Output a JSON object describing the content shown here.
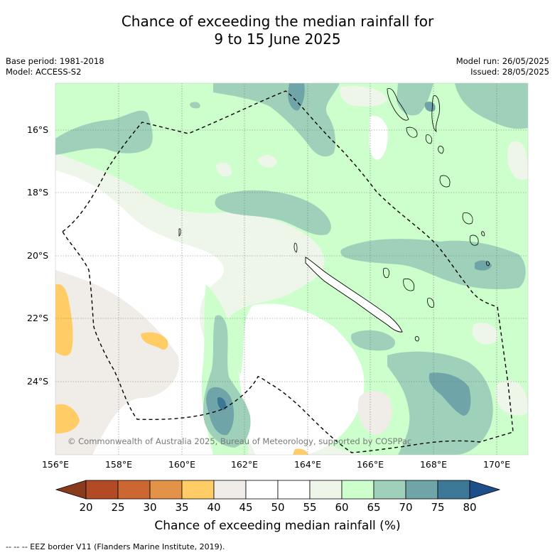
{
  "header": {
    "title_line1": "Chance of exceeding the median rainfall for",
    "title_line2": "9 to 15 June 2025",
    "base_period": "Base period: 1981-2018",
    "model": "Model: ACCESS-S2",
    "model_run": "Model run: 26/05/2025",
    "issued": "Issued: 28/05/2025"
  },
  "map": {
    "latitude_labels": [
      "16°S",
      "18°S",
      "20°S",
      "22°S",
      "24°S"
    ],
    "longitude_labels": [
      "156°E",
      "158°E",
      "160°E",
      "162°E",
      "164°E",
      "166°E",
      "168°E",
      "170°E"
    ],
    "copyright": "© Commonwealth of Australia 2025, Bureau of Meteorology, supported by COSPPac"
  },
  "colorbar": {
    "ticks": [
      "20",
      "25",
      "30",
      "35",
      "40",
      "45",
      "50",
      "55",
      "60",
      "65",
      "70",
      "75",
      "80"
    ],
    "colors": [
      "#8a3a1c",
      "#b24a25",
      "#cc6633",
      "#e39347",
      "#ffcc66",
      "#f0ece7",
      "#ffffff",
      "#ffffff",
      "#eef6ea",
      "#ccffcc",
      "#9fd0b9",
      "#6fa5a8",
      "#3d7796",
      "#1f4f8a"
    ],
    "label": "Chance of exceeding median rainfall (%)"
  },
  "footnote": "-- -- -- EEZ border V11 (Flanders Marine Institute, 2019)."
}
